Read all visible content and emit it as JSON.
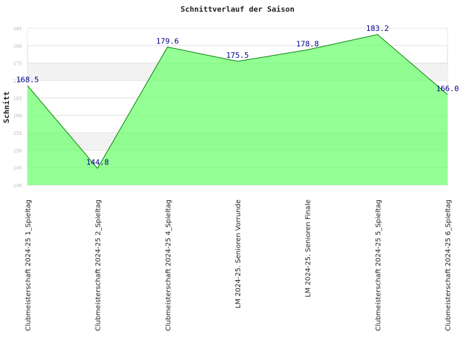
{
  "chart_data": {
    "type": "area",
    "title": "Schnittverlauf der Saison",
    "xlabel": "",
    "ylabel": "Schnitt",
    "ylim": [
      140,
      185
    ],
    "yticks": [
      140,
      145,
      150,
      155,
      160,
      165,
      170,
      175,
      180,
      185
    ],
    "grid": true,
    "categories": [
      "Clubmeisterschaft 2024-25   1_Spieltag",
      "Clubmeisterschaft 2024-25   2_Spieltag",
      "Clubmeisterschaft 2024-25   4_Spieltag",
      "LM 2024-25. Senioren Vorrunde",
      "LM 2024-25. Senioren Finale",
      "Clubmeisterschaft 2024-25   5_Spieltag",
      "Clubmeisterschaft 2024-25   6_Spieltag"
    ],
    "series": [
      {
        "values": [
          168.5,
          144.8,
          179.6,
          175.5,
          178.8,
          183.2,
          166.0
        ]
      }
    ],
    "value_labels": [
      "168.5",
      "144.8",
      "179.6",
      "175.5",
      "178.8",
      "183.2",
      "166.0"
    ],
    "colors": {
      "fill": "#66ff66",
      "line": "#008000",
      "band": "#f2f2f2",
      "label": "#00008b"
    }
  }
}
